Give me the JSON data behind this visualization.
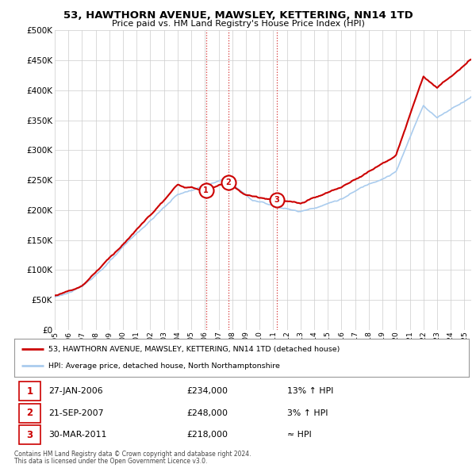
{
  "title": "53, HAWTHORN AVENUE, MAWSLEY, KETTERING, NN14 1TD",
  "subtitle": "Price paid vs. HM Land Registry's House Price Index (HPI)",
  "legend_label_red": "53, HAWTHORN AVENUE, MAWSLEY, KETTERING, NN14 1TD (detached house)",
  "legend_label_blue": "HPI: Average price, detached house, North Northamptonshire",
  "footer_line1": "Contains HM Land Registry data © Crown copyright and database right 2024.",
  "footer_line2": "This data is licensed under the Open Government Licence v3.0.",
  "transactions": [
    {
      "num": 1,
      "date": "27-JAN-2006",
      "price": "£234,000",
      "hpi": "13% ↑ HPI",
      "year": 2006.07,
      "price_val": 234000
    },
    {
      "num": 2,
      "date": "21-SEP-2007",
      "price": "£248,000",
      "hpi": "3% ↑ HPI",
      "year": 2007.72,
      "price_val": 248000
    },
    {
      "num": 3,
      "date": "30-MAR-2011",
      "price": "£218,000",
      "hpi": "≈ HPI",
      "year": 2011.25,
      "price_val": 218000
    }
  ],
  "ylim": [
    0,
    500000
  ],
  "yticks": [
    0,
    50000,
    100000,
    150000,
    200000,
    250000,
    300000,
    350000,
    400000,
    450000,
    500000
  ],
  "xlim_start": 1995,
  "xlim_end": 2025.5,
  "background_color": "#ffffff",
  "grid_color": "#cccccc",
  "red_color": "#cc0000",
  "blue_color": "#aaccee"
}
